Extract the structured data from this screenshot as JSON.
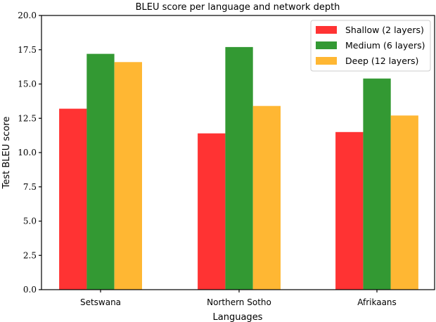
{
  "chart_data": {
    "type": "bar",
    "title": "BLEU score per language and network depth",
    "xlabel": "Languages",
    "ylabel": "Test BLEU score",
    "categories": [
      "Setswana",
      "Northern Sotho",
      "Afrikaans"
    ],
    "series": [
      {
        "name": "Shallow (2 layers)",
        "color": "#FF3333",
        "values": [
          13.2,
          11.4,
          11.5
        ]
      },
      {
        "name": "Medium (6 layers)",
        "color": "#339933",
        "values": [
          17.2,
          17.7,
          15.4
        ]
      },
      {
        "name": "Deep (12 layers)",
        "color": "#FFB733",
        "values": [
          16.6,
          13.4,
          12.7
        ]
      }
    ],
    "ylim": [
      0,
      20
    ],
    "yticks": [
      "0.0",
      "2.5",
      "5.0",
      "7.5",
      "10.0",
      "12.5",
      "15.0",
      "17.5",
      "20.0"
    ],
    "grid": false,
    "legend_position": "upper right"
  }
}
